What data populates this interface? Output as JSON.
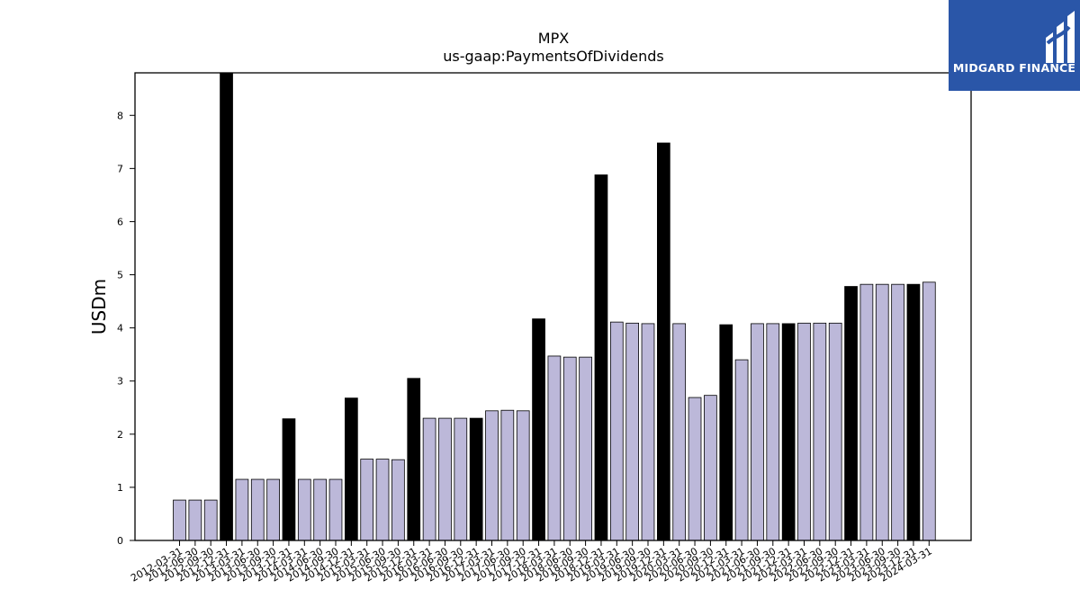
{
  "chart_data": {
    "type": "bar",
    "title": "MPX",
    "subtitle": "us-gaap:PaymentsOfDividends",
    "xlabel": "",
    "ylabel": "USDm",
    "ylim": [
      0,
      8.8
    ],
    "yticks": [
      0,
      1,
      2,
      3,
      4,
      5,
      6,
      7,
      8
    ],
    "grid": false,
    "colors": {
      "regular": "#bcb8d9",
      "highlight": "#000000",
      "edge": "#000000"
    },
    "categories": [
      "2012-03-31",
      "2012-06-30",
      "2012-09-30",
      "2012-12-31",
      "2013-03-31",
      "2013-06-30",
      "2013-09-30",
      "2013-12-31",
      "2014-03-31",
      "2014-06-30",
      "2014-09-30",
      "2014-12-31",
      "2015-03-31",
      "2015-06-30",
      "2015-09-30",
      "2015-12-31",
      "2016-03-31",
      "2016-06-30",
      "2016-09-30",
      "2016-12-31",
      "2017-03-31",
      "2017-06-30",
      "2017-09-30",
      "2017-12-31",
      "2018-03-31",
      "2018-06-30",
      "2018-09-30",
      "2018-12-31",
      "2019-03-31",
      "2019-06-30",
      "2019-09-30",
      "2019-12-31",
      "2020-03-31",
      "2020-06-30",
      "2020-09-30",
      "2020-12-31",
      "2021-03-31",
      "2021-06-30",
      "2021-09-30",
      "2021-12-31",
      "2022-03-31",
      "2022-06-30",
      "2022-09-30",
      "2022-12-31",
      "2023-03-31",
      "2023-06-30",
      "2023-09-30",
      "2023-12-31",
      "2024-03-31"
    ],
    "values": [
      0.76,
      0.76,
      0.76,
      8.8,
      1.15,
      1.15,
      1.15,
      2.29,
      1.15,
      1.15,
      1.15,
      2.68,
      1.53,
      1.53,
      1.52,
      3.05,
      2.3,
      2.3,
      2.3,
      2.3,
      2.44,
      2.45,
      2.44,
      4.17,
      3.47,
      3.45,
      3.45,
      6.88,
      4.11,
      4.09,
      4.08,
      7.48,
      4.08,
      2.69,
      2.73,
      4.06,
      3.4,
      4.08,
      4.08,
      4.08,
      4.09,
      4.09,
      4.09,
      4.78,
      4.82,
      4.82,
      4.82,
      4.82,
      4.86
    ],
    "highlighted": [
      false,
      false,
      false,
      true,
      false,
      false,
      false,
      true,
      false,
      false,
      false,
      true,
      false,
      false,
      false,
      true,
      false,
      false,
      false,
      true,
      false,
      false,
      false,
      true,
      false,
      false,
      false,
      true,
      false,
      false,
      false,
      true,
      false,
      false,
      false,
      true,
      false,
      false,
      false,
      true,
      false,
      false,
      false,
      true,
      false,
      false,
      false,
      true,
      false
    ]
  },
  "logo": {
    "text": "MIDGARD FINANCE"
  }
}
